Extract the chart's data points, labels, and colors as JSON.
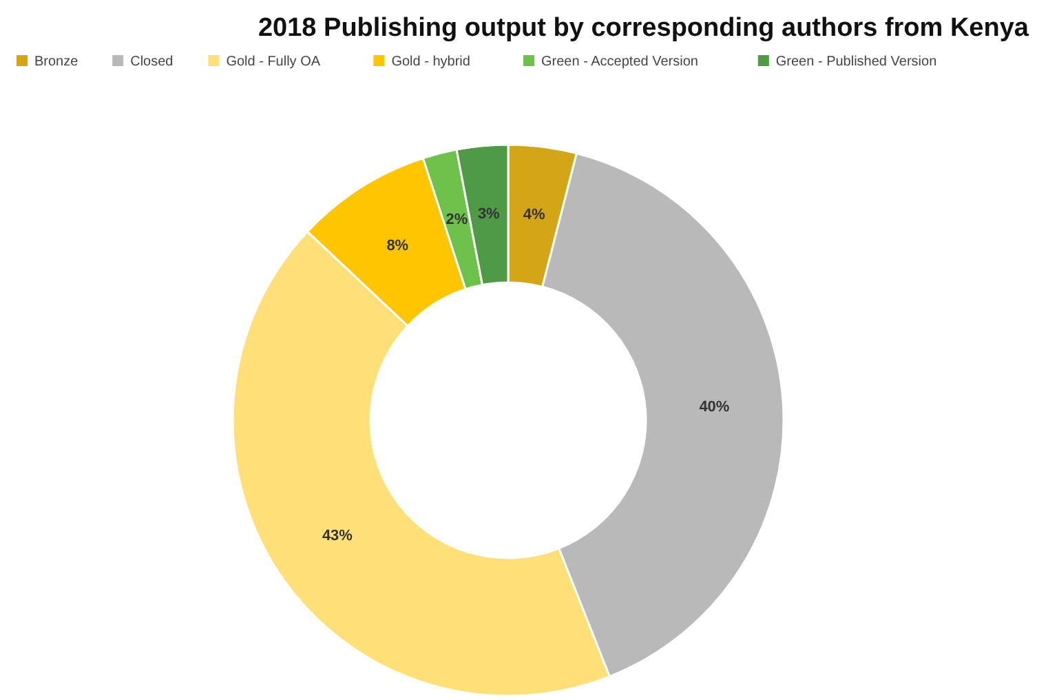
{
  "chart_data": {
    "type": "donut",
    "title": "2018 Publishing output by corresponding authors from Kenya",
    "categories": [
      "Bronze",
      "Closed",
      "Gold - Fully OA",
      "Gold - hybrid",
      "Green - Accepted Version",
      "Green - Published Version"
    ],
    "values": [
      4,
      40,
      43,
      8,
      2,
      3
    ],
    "value_labels": [
      "4%",
      "40%",
      "43%",
      "8%",
      "2%",
      "3%"
    ],
    "colors": [
      "#d4a517",
      "#b9b9b9",
      "#ffdf78",
      "#ffc600",
      "#6cc24a",
      "#4e9a47"
    ],
    "legend": "top"
  }
}
